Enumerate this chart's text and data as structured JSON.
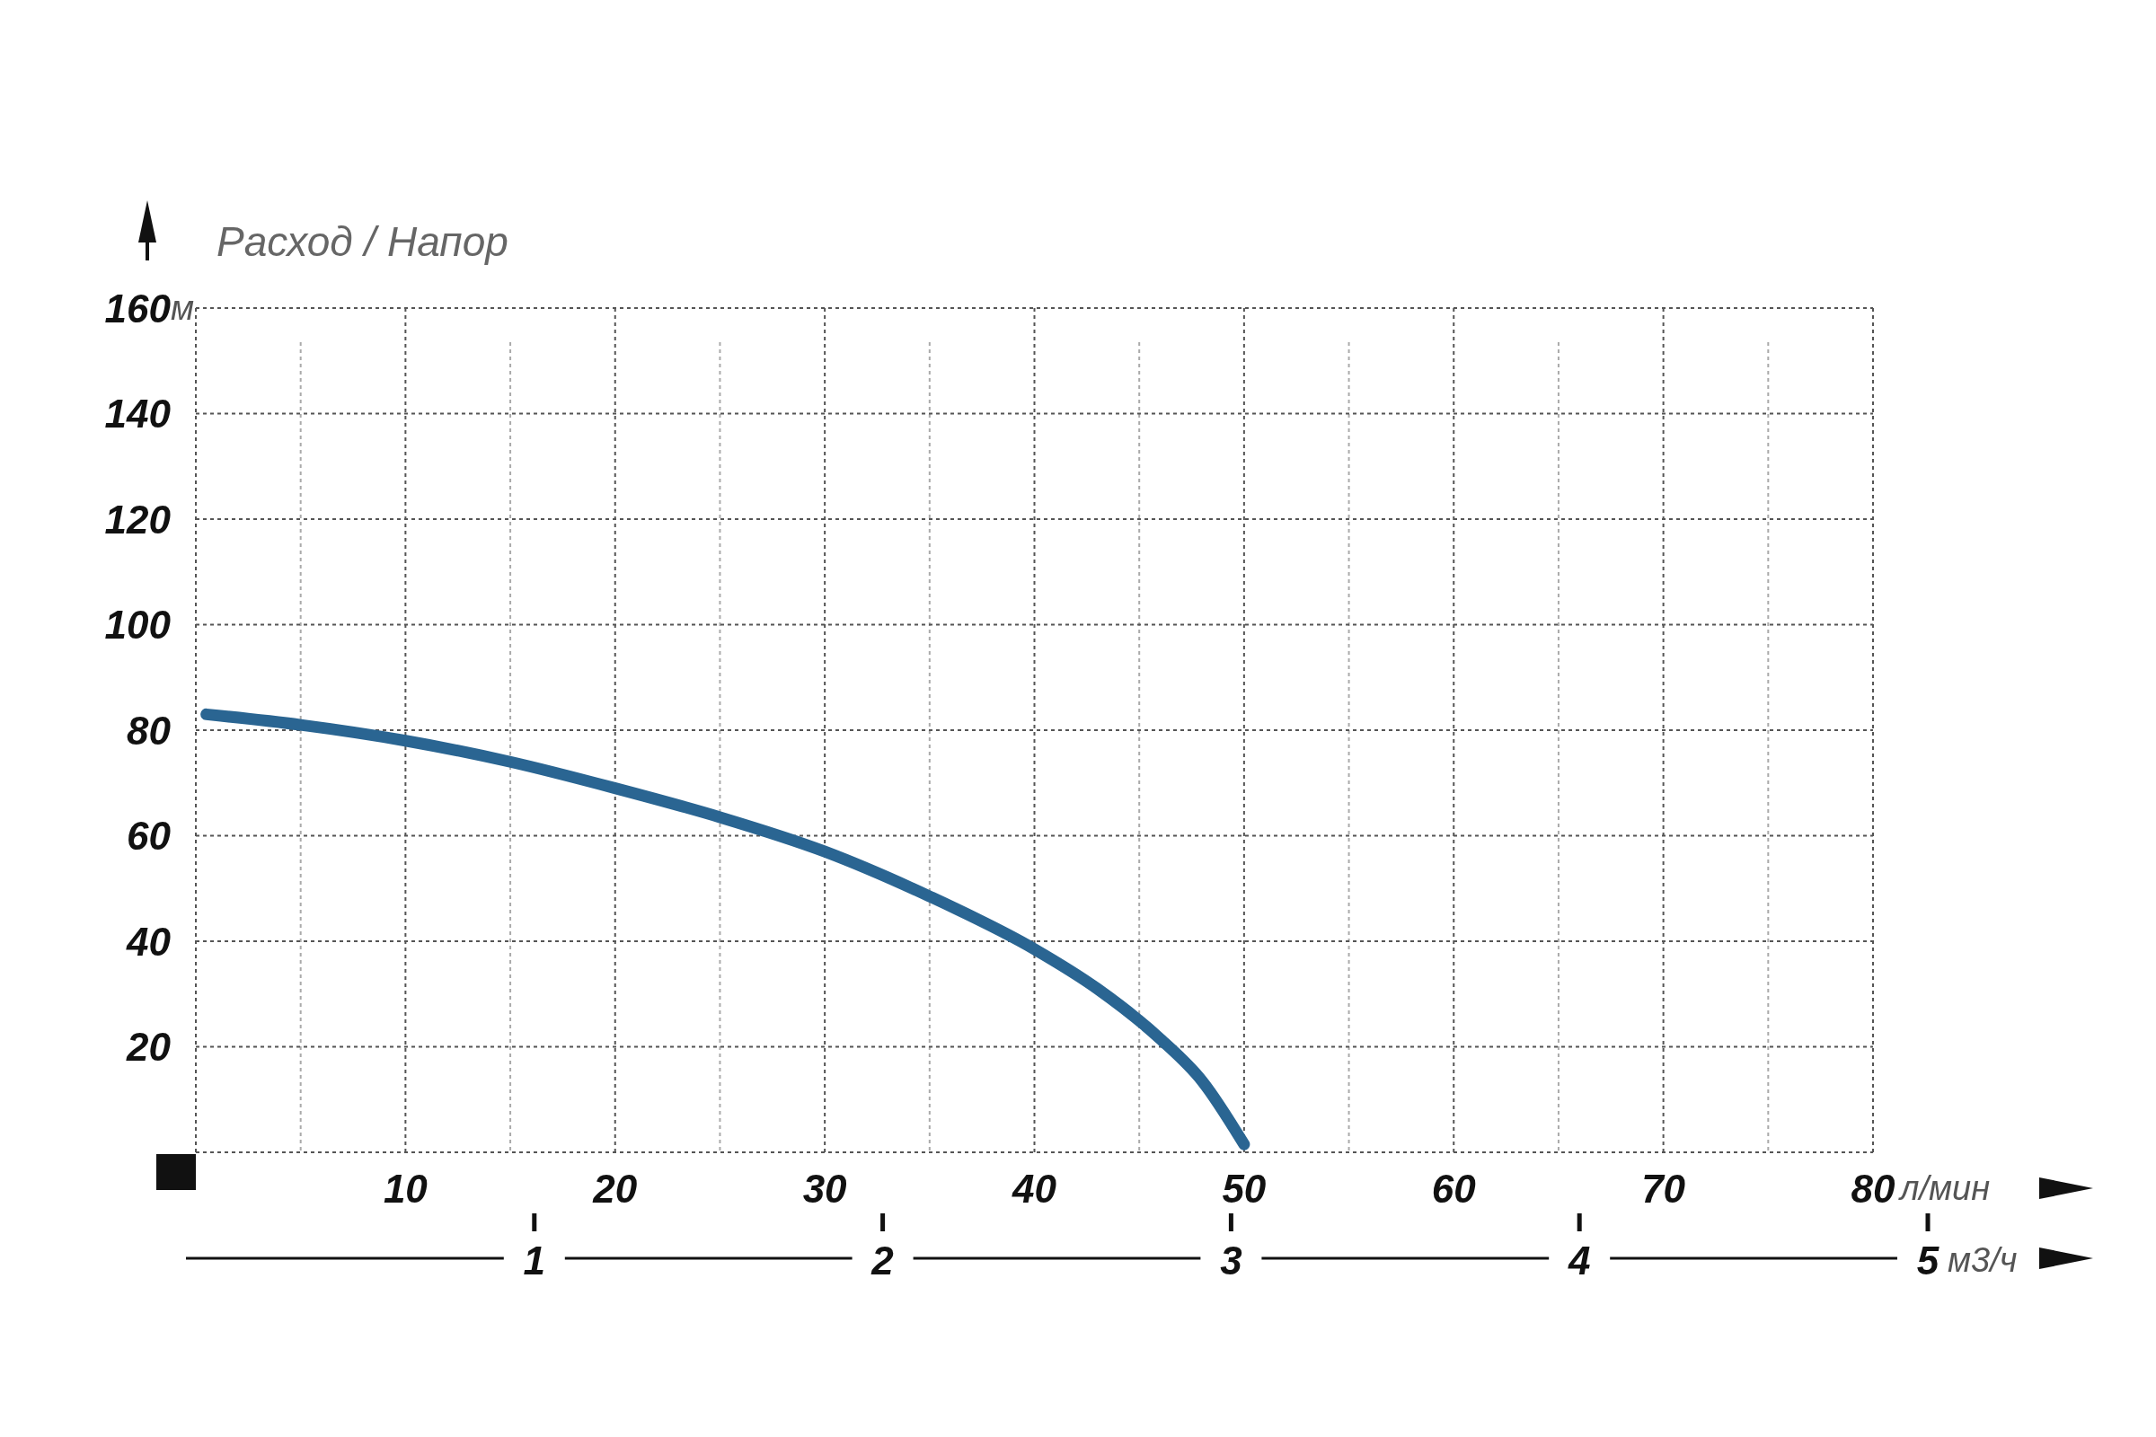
{
  "chart_data": {
    "type": "line",
    "ylabel": "Расход / Напор",
    "xlabel": "л/мин",
    "x2label": "м3/ч",
    "annotations": [
      "м"
    ],
    "x": [
      0.5,
      5,
      10,
      15,
      20,
      25,
      30,
      35,
      40,
      43,
      46,
      48,
      50
    ],
    "series": [
      {
        "color": "#2a6592",
        "values": [
          83,
          81,
          78,
          74,
          69,
          63.5,
          57,
          48.5,
          38.5,
          31,
          21.5,
          13.5,
          1.5
        ]
      }
    ],
    "xlim": [
      0,
      80
    ],
    "xticks": [
      {
        "value": 5,
        "label": null
      },
      10,
      {
        "value": 15,
        "label": null
      },
      20,
      {
        "value": 25,
        "label": null
      },
      30,
      {
        "value": 35,
        "label": null
      },
      40,
      {
        "value": 45,
        "label": null
      },
      50,
      {
        "value": 55,
        "label": null
      },
      60,
      {
        "value": 65,
        "label": null
      },
      70,
      {
        "value": 75,
        "label": null
      },
      80
    ],
    "ylim": [
      0,
      160
    ],
    "yticks": [
      20,
      40,
      60,
      80,
      100,
      120,
      140,
      160
    ],
    "x2lim": [
      0,
      5
    ],
    "x2ticks": [
      1,
      2,
      3,
      4,
      5
    ],
    "grid": true,
    "line_style": "solid",
    "marker": "none"
  }
}
